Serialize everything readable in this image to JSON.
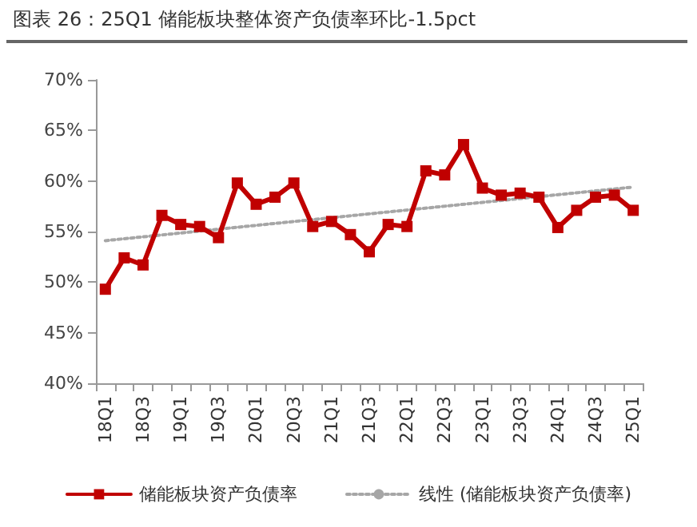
{
  "chart_data": {
    "type": "line",
    "title": "图表 26：25Q1 储能板块整体资产负债率环比-1.5pct",
    "categories": [
      "18Q1",
      null,
      "18Q3",
      null,
      "19Q1",
      null,
      "19Q3",
      null,
      "20Q1",
      null,
      "20Q3",
      null,
      "21Q1",
      null,
      "21Q3",
      null,
      "22Q1",
      null,
      "22Q3",
      null,
      "23Q1",
      null,
      "23Q3",
      null,
      "24Q1",
      null,
      "24Q3",
      null,
      "25Q1"
    ],
    "series": [
      {
        "name": "储能板块资产负债率",
        "color": "#c00000",
        "marker": "square",
        "line_style": "solid",
        "values": [
          49.3,
          52.4,
          51.7,
          56.6,
          55.7,
          55.5,
          54.4,
          59.8,
          57.7,
          58.4,
          59.8,
          55.5,
          56.0,
          54.7,
          53.0,
          55.7,
          55.5,
          61.0,
          60.6,
          63.6,
          59.3,
          58.6,
          58.8,
          58.4,
          55.4,
          57.1,
          58.4,
          58.6,
          57.1
        ]
      },
      {
        "name": "线性 (储能板块资产负债率)",
        "color": "#a6a6a6",
        "marker": "none",
        "line_style": "dotted",
        "x": [
          "18Q1",
          "25Q1"
        ],
        "values": [
          54.1,
          59.4
        ]
      }
    ],
    "ylim": [
      40,
      70
    ],
    "yticks": [
      {
        "value": 40,
        "label": "40%"
      },
      {
        "value": 45,
        "label": "45%"
      },
      {
        "value": 50,
        "label": "50%"
      },
      {
        "value": 55,
        "label": "55%"
      },
      {
        "value": 60,
        "label": "60%"
      },
      {
        "value": 65,
        "label": "65%"
      },
      {
        "value": 70,
        "label": "70%"
      }
    ],
    "grid": false,
    "legend": "bottom"
  }
}
